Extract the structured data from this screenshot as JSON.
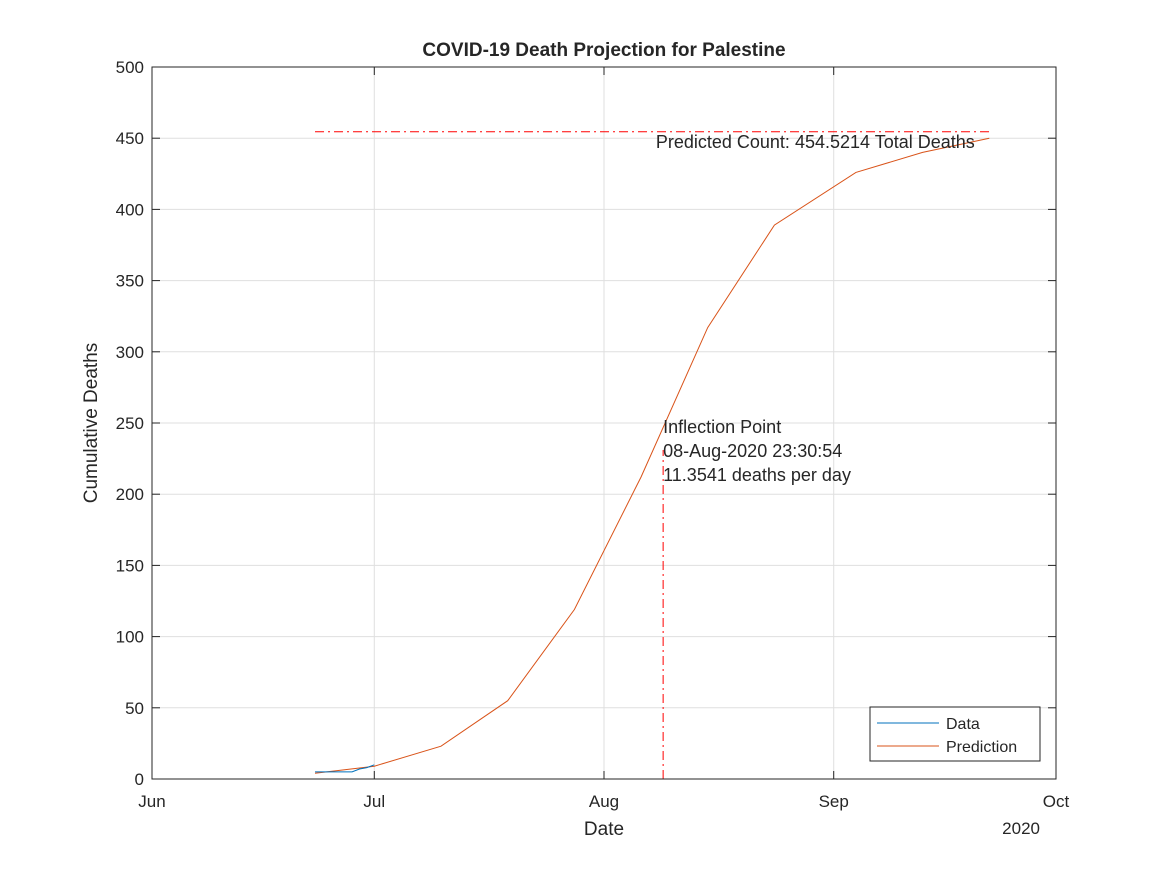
{
  "chart_data": {
    "type": "line",
    "title": "COVID-19 Death Projection for Palestine",
    "xlabel": "Date",
    "ylabel": "Cumulative Deaths",
    "x_year_label": "2020",
    "x_ticks": [
      {
        "date": "2020-06-01",
        "label": "Jun"
      },
      {
        "date": "2020-07-01",
        "label": "Jul"
      },
      {
        "date": "2020-08-01",
        "label": "Aug"
      },
      {
        "date": "2020-09-01",
        "label": "Sep"
      },
      {
        "date": "2020-10-01",
        "label": "Oct"
      }
    ],
    "xlim": [
      "2020-06-01",
      "2020-10-01"
    ],
    "ylim": [
      0,
      500
    ],
    "y_ticks": [
      0,
      50,
      100,
      150,
      200,
      250,
      300,
      350,
      400,
      450,
      500
    ],
    "grid": true,
    "legend_position": "bottom-right",
    "series": [
      {
        "name": "Data",
        "color": "#0072BD",
        "points": [
          {
            "x": "2020-06-23",
            "y": 5
          },
          {
            "x": "2020-06-24",
            "y": 5
          },
          {
            "x": "2020-06-25",
            "y": 5
          },
          {
            "x": "2020-06-26",
            "y": 5
          },
          {
            "x": "2020-06-27",
            "y": 5
          },
          {
            "x": "2020-06-28",
            "y": 5
          },
          {
            "x": "2020-06-29",
            "y": 7
          },
          {
            "x": "2020-06-30",
            "y": 8
          },
          {
            "x": "2020-07-01",
            "y": 10
          }
        ]
      },
      {
        "name": "Prediction",
        "color": "#D95319",
        "points": [
          {
            "x": "2020-06-23",
            "y": 4
          },
          {
            "x": "2020-07-01",
            "y": 9
          },
          {
            "x": "2020-07-10",
            "y": 23
          },
          {
            "x": "2020-07-19",
            "y": 55
          },
          {
            "x": "2020-07-28",
            "y": 119
          },
          {
            "x": "2020-08-06",
            "y": 212
          },
          {
            "x": "2020-08-15",
            "y": 317
          },
          {
            "x": "2020-08-24",
            "y": 389
          },
          {
            "x": "2020-09-04",
            "y": 426
          },
          {
            "x": "2020-09-13",
            "y": 440
          },
          {
            "x": "2020-09-22",
            "y": 450
          }
        ]
      }
    ],
    "reference_lines": [
      {
        "orientation": "horizontal",
        "y": 454.5214,
        "x_from": "2020-06-23",
        "x_to": "2020-09-22",
        "color": "#FF0000",
        "style": "dash-dot"
      },
      {
        "orientation": "vertical",
        "x": "2020-08-08T23:30:54",
        "y_from": 0,
        "y_to": 231,
        "color": "#FF0000",
        "style": "dash-dot"
      }
    ],
    "annotations": [
      {
        "id": "predicted-count",
        "anchor": {
          "x": "2020-08-08",
          "y": 443
        },
        "lines": [
          "Predicted Count: 454.5214 Total Deaths"
        ]
      },
      {
        "id": "inflection-point",
        "anchor": {
          "x": "2020-08-08T23:30:54",
          "y": 243
        },
        "lines": [
          "Inflection Point",
          "08-Aug-2020 23:30:54",
          "11.3541 deaths per day"
        ]
      }
    ]
  }
}
